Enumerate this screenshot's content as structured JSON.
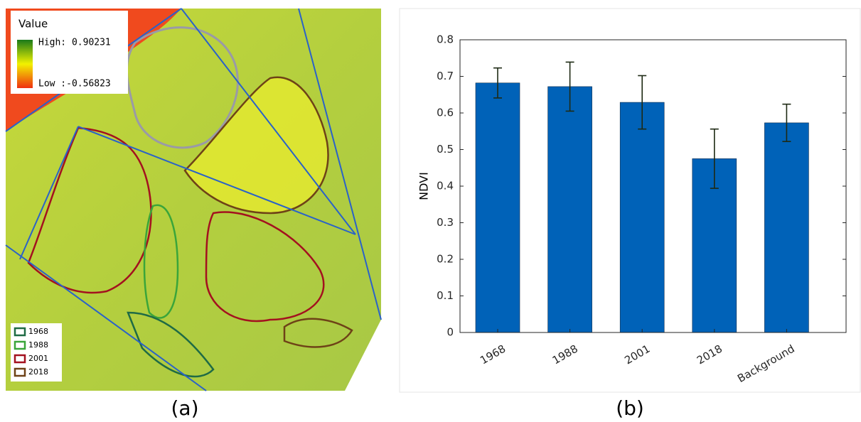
{
  "map": {
    "caption": "(a)",
    "colorbar": {
      "title": "Value",
      "high": "High: 0.90231",
      "low": "Low :-0.56823"
    },
    "legend": [
      {
        "name": "1968",
        "color": "#1f6b45"
      },
      {
        "name": "1988",
        "color": "#3aa53a"
      },
      {
        "name": "2001",
        "color": "#a3111f"
      },
      {
        "name": "2018",
        "color": "#6e4217"
      }
    ]
  },
  "chart_data": {
    "type": "bar",
    "caption": "(b)",
    "ylabel": "NDVI",
    "categories": [
      "1968",
      "1988",
      "2001",
      "2018",
      "Background"
    ],
    "values": [
      0.682,
      0.672,
      0.629,
      0.475,
      0.573
    ],
    "errors": [
      0.041,
      0.067,
      0.073,
      0.081,
      0.051
    ],
    "color": "#0062b8",
    "error_color": "#1e2a14",
    "ylim": [
      0,
      0.8
    ],
    "yticks": [
      0,
      0.1,
      0.2,
      0.3,
      0.4,
      0.5,
      0.6,
      0.7,
      0.8
    ],
    "grid": false
  }
}
